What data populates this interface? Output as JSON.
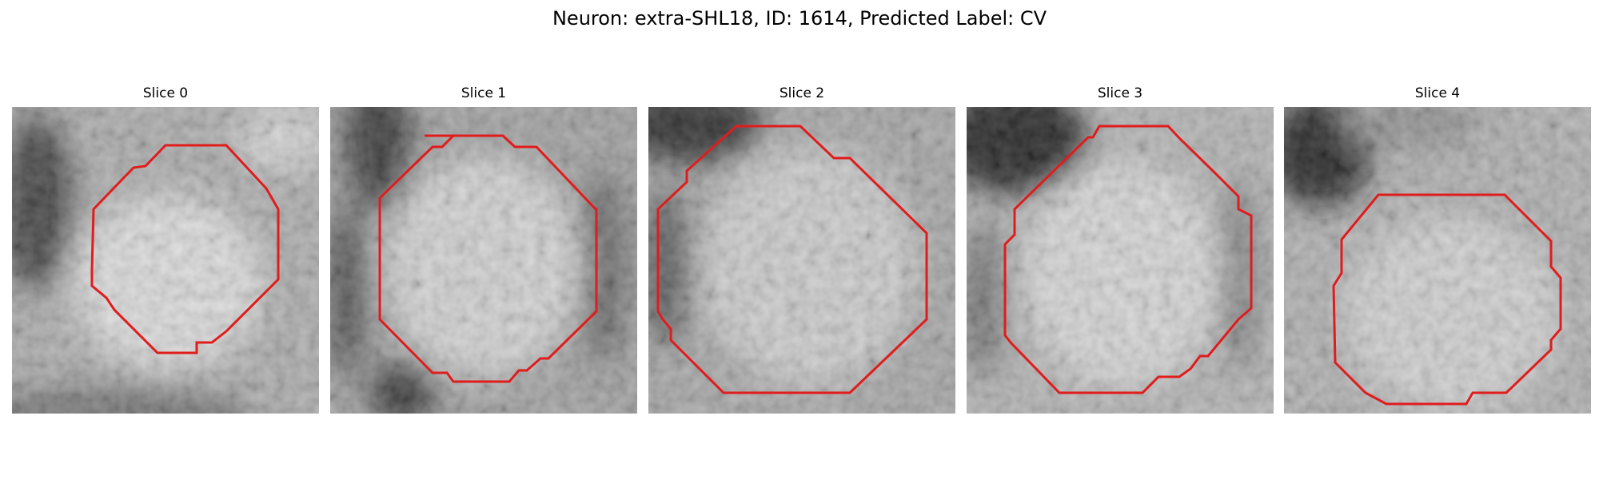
{
  "figure": {
    "title": "Neuron: extra-SHL18, ID: 1614, Predicted Label: CV"
  },
  "colors": {
    "contour": "#e01c1c",
    "background": "#ffffff"
  },
  "slices": [
    {
      "label": "Slice 0"
    },
    {
      "label": "Slice 1"
    },
    {
      "label": "Slice 2"
    },
    {
      "label": "Slice 3"
    },
    {
      "label": "Slice 4"
    }
  ]
}
